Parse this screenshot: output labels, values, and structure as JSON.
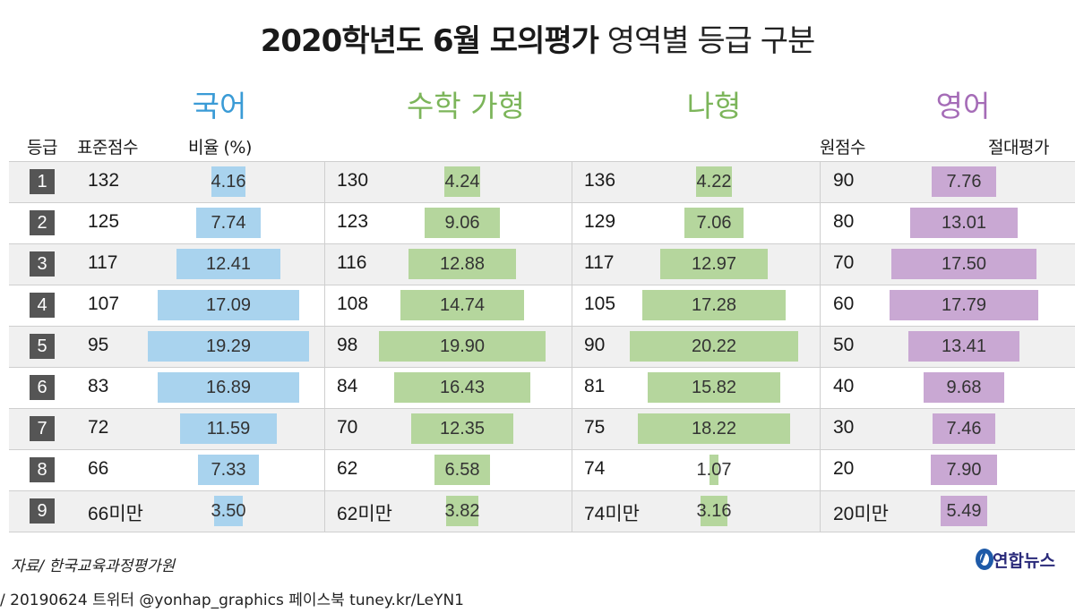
{
  "title_bold": "2020학년도 6월 모의평가",
  "title_light": "영역별 등급 구분",
  "subjects": {
    "korean": "국어",
    "math_ga": "수학 가형",
    "math_na": "나형",
    "english": "영어"
  },
  "headers": {
    "grade": "등급",
    "std_score": "표준점수",
    "ratio": "비율 (%)",
    "raw_score": "원점수",
    "absolute": "절대평가"
  },
  "source": "자료/ 한국교육과정평가원",
  "logo": "연합뉴스",
  "footer": "/ 20190624  트위터 @yonhap_graphics  페이스북 tuney.kr/LeYN1",
  "colors": {
    "korean": "#a9d3ee",
    "math": "#b5d69d",
    "english": "#c9a8d3",
    "badge": "#555555"
  },
  "chart_data": {
    "type": "table",
    "grades": [
      "1",
      "2",
      "3",
      "4",
      "5",
      "6",
      "7",
      "8",
      "9"
    ],
    "columns": [
      {
        "name": "국어",
        "scores": [
          "132",
          "125",
          "117",
          "107",
          "95",
          "83",
          "72",
          "66",
          "66미만"
        ],
        "values": [
          4.16,
          7.74,
          12.41,
          17.09,
          19.29,
          16.89,
          11.59,
          7.33,
          3.5
        ],
        "labels": [
          "4.16",
          "7.74",
          "12.41",
          "17.09",
          "19.29",
          "16.89",
          "11.59",
          "7.33",
          "3.50"
        ]
      },
      {
        "name": "수학 가형",
        "scores": [
          "130",
          "123",
          "116",
          "108",
          "98",
          "84",
          "70",
          "62",
          "62미만"
        ],
        "values": [
          4.24,
          9.06,
          12.88,
          14.74,
          19.9,
          16.43,
          12.35,
          6.58,
          3.82
        ],
        "labels": [
          "4.24",
          "9.06",
          "12.88",
          "14.74",
          "19.90",
          "16.43",
          "12.35",
          "6.58",
          "3.82"
        ]
      },
      {
        "name": "나형",
        "scores": [
          "136",
          "129",
          "117",
          "105",
          "90",
          "81",
          "75",
          "74",
          "74미만"
        ],
        "values": [
          4.22,
          7.06,
          12.97,
          17.28,
          20.22,
          15.82,
          18.22,
          1.07,
          3.16
        ],
        "labels": [
          "4.22",
          "7.06",
          "12.97",
          "17.28",
          "20.22",
          "15.82",
          "18.22",
          "1.07",
          "3.16"
        ]
      },
      {
        "name": "영어",
        "scores": [
          "90",
          "80",
          "70",
          "60",
          "50",
          "40",
          "30",
          "20",
          "20미만"
        ],
        "values": [
          7.76,
          13.01,
          17.5,
          17.79,
          13.41,
          9.68,
          7.46,
          7.9,
          5.49
        ],
        "labels": [
          "7.76",
          "13.01",
          "17.50",
          "17.79",
          "13.41",
          "9.68",
          "7.46",
          "7.90",
          "5.49"
        ]
      }
    ]
  }
}
